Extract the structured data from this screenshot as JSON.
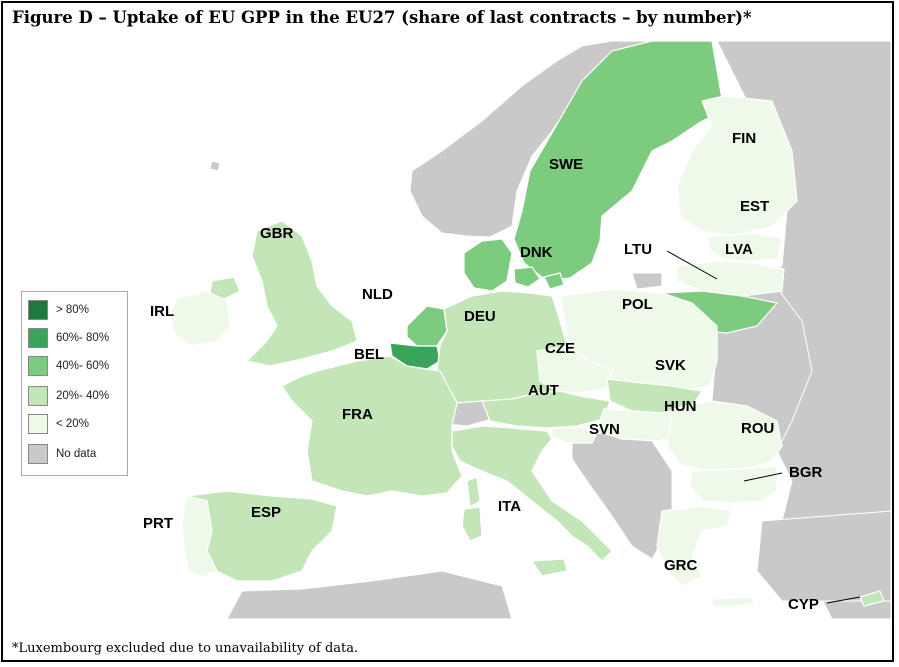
{
  "title": "Figure D – Uptake of EU GPP in the EU27 (share of last contracts – by number)*",
  "footnote": "*Luxembourg excluded due to unavailability of data.",
  "colors": {
    "background": "#ffffff",
    "sea": "#ffffff",
    "no_data": "#c9c9c9",
    "border": "#ffffff",
    "class_gt80": "#1e7a3c",
    "class_60_80": "#3aa45a",
    "class_40_60": "#7ccb7f",
    "class_20_40": "#c2e6b8",
    "class_lt20": "#eef9ea"
  },
  "legend": {
    "items": [
      {
        "label": ">  80%",
        "color": "#1e7a3c"
      },
      {
        "label": "60%- 80%",
        "color": "#3aa45a"
      },
      {
        "label": "40%- 60%",
        "color": "#7ccb7f"
      },
      {
        "label": "20%- 40%",
        "color": "#c2e6b8"
      },
      {
        "label": "<  20%",
        "color": "#eef9ea"
      },
      {
        "label": "No data",
        "color": "#c9c9c9"
      }
    ]
  },
  "countries": [
    {
      "code": "SWE",
      "class": "40%- 60%"
    },
    {
      "code": "FIN",
      "class": "<  20%"
    },
    {
      "code": "EST",
      "class": "<  20%"
    },
    {
      "code": "LVA",
      "class": "<  20%"
    },
    {
      "code": "LTU",
      "class": "40%- 60%"
    },
    {
      "code": "DNK",
      "class": "40%- 60%"
    },
    {
      "code": "GBR",
      "class": "20%- 40%"
    },
    {
      "code": "IRL",
      "class": "<  20%"
    },
    {
      "code": "NLD",
      "class": "40%- 60%"
    },
    {
      "code": "BEL",
      "class": "60%- 80%"
    },
    {
      "code": "DEU",
      "class": "20%- 40%"
    },
    {
      "code": "POL",
      "class": "<  20%"
    },
    {
      "code": "CZE",
      "class": "<  20%"
    },
    {
      "code": "SVK",
      "class": "20%- 40%"
    },
    {
      "code": "AUT",
      "class": "20%- 40%"
    },
    {
      "code": "HUN",
      "class": "<  20%"
    },
    {
      "code": "SVN",
      "class": "<  20%"
    },
    {
      "code": "ROU",
      "class": "<  20%"
    },
    {
      "code": "BGR",
      "class": "<  20%"
    },
    {
      "code": "FRA",
      "class": "20%- 40%"
    },
    {
      "code": "ESP",
      "class": "20%- 40%"
    },
    {
      "code": "PRT",
      "class": "<  20%"
    },
    {
      "code": "ITA",
      "class": "20%- 40%"
    },
    {
      "code": "GRC",
      "class": "<  20%"
    },
    {
      "code": "CYP",
      "class": "20%- 40%"
    }
  ]
}
